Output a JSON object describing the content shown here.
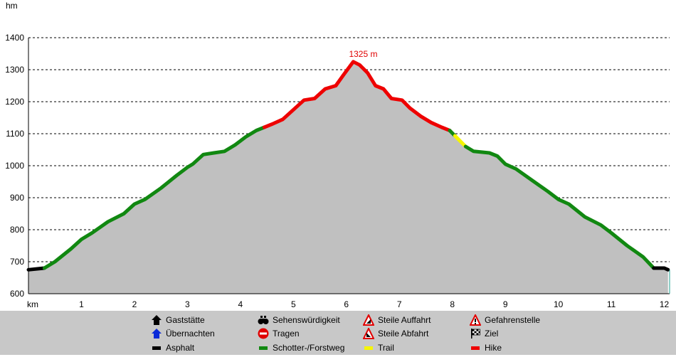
{
  "chart_data": {
    "type": "area",
    "ylabel": "hm",
    "xlabel": "km",
    "ylim": [
      600,
      1400
    ],
    "xlim": [
      0,
      12.1
    ],
    "y_ticks": [
      "600",
      "700",
      "800",
      "900",
      "1000",
      "1100",
      "1200",
      "1300",
      "1400"
    ],
    "x_ticks": [
      "1",
      "2",
      "3",
      "4",
      "5",
      "6",
      "7",
      "8",
      "9",
      "10",
      "11",
      "12"
    ],
    "grid": "horizontal dashed",
    "annotation": "1325 m",
    "peak": {
      "x": 6.13,
      "y": 1325
    },
    "profile": [
      [
        0.0,
        675
      ],
      [
        0.3,
        680
      ],
      [
        0.5,
        700
      ],
      [
        0.8,
        740
      ],
      [
        1.0,
        770
      ],
      [
        1.2,
        790
      ],
      [
        1.5,
        825
      ],
      [
        1.8,
        850
      ],
      [
        2.0,
        880
      ],
      [
        2.2,
        895
      ],
      [
        2.5,
        930
      ],
      [
        2.8,
        970
      ],
      [
        3.0,
        995
      ],
      [
        3.1,
        1005
      ],
      [
        3.3,
        1035
      ],
      [
        3.5,
        1040
      ],
      [
        3.7,
        1045
      ],
      [
        3.9,
        1065
      ],
      [
        4.1,
        1090
      ],
      [
        4.3,
        1110
      ],
      [
        4.45,
        1120
      ],
      [
        4.6,
        1130
      ],
      [
        4.8,
        1145
      ],
      [
        5.0,
        1175
      ],
      [
        5.2,
        1205
      ],
      [
        5.4,
        1210
      ],
      [
        5.6,
        1240
      ],
      [
        5.8,
        1250
      ],
      [
        5.95,
        1285
      ],
      [
        6.13,
        1325
      ],
      [
        6.25,
        1315
      ],
      [
        6.4,
        1290
      ],
      [
        6.55,
        1250
      ],
      [
        6.7,
        1240
      ],
      [
        6.85,
        1210
      ],
      [
        7.05,
        1205
      ],
      [
        7.2,
        1180
      ],
      [
        7.4,
        1155
      ],
      [
        7.6,
        1135
      ],
      [
        7.8,
        1120
      ],
      [
        7.95,
        1110
      ],
      [
        8.1,
        1085
      ],
      [
        8.25,
        1060
      ],
      [
        8.4,
        1045
      ],
      [
        8.7,
        1040
      ],
      [
        8.85,
        1030
      ],
      [
        9.0,
        1005
      ],
      [
        9.2,
        990
      ],
      [
        9.5,
        955
      ],
      [
        9.8,
        920
      ],
      [
        10.0,
        895
      ],
      [
        10.2,
        880
      ],
      [
        10.5,
        840
      ],
      [
        10.8,
        815
      ],
      [
        11.0,
        790
      ],
      [
        11.3,
        750
      ],
      [
        11.6,
        715
      ],
      [
        11.8,
        680
      ],
      [
        12.0,
        680
      ],
      [
        12.07,
        675
      ]
    ],
    "segments": [
      {
        "surface": "asphalt",
        "from": 0.0,
        "to": 0.3
      },
      {
        "surface": "gravel",
        "from": 0.3,
        "to": 4.45
      },
      {
        "surface": "hike",
        "from": 4.45,
        "to": 7.95
      },
      {
        "surface": "gravel",
        "from": 7.95,
        "to": 8.05
      },
      {
        "surface": "trail",
        "from": 8.05,
        "to": 8.25
      },
      {
        "surface": "gravel",
        "from": 8.25,
        "to": 11.8
      },
      {
        "surface": "asphalt",
        "from": 11.8,
        "to": 12.07
      }
    ],
    "colors": {
      "asphalt": "#000000",
      "gravel": "#118811",
      "trail": "#f5f500",
      "hike": "#ee0000",
      "fill": "#c0c0c0",
      "annotation": "#e00000"
    }
  },
  "legend": {
    "items": [
      {
        "label": "Gaststätte",
        "icon": "house-black-icon"
      },
      {
        "label": "Sehenswürdigkeit",
        "icon": "binoculars-icon"
      },
      {
        "label": "Steile Auffahrt",
        "icon": "steep-ascent-icon"
      },
      {
        "label": "Gefahrenstelle",
        "icon": "danger-sign-icon"
      },
      {
        "label": "Übernachten",
        "icon": "house-blue-icon"
      },
      {
        "label": "Tragen",
        "icon": "stop-icon"
      },
      {
        "label": "Steile Abfahrt",
        "icon": "steep-descent-icon"
      },
      {
        "label": "Ziel",
        "icon": "checkered-flag-icon"
      },
      {
        "label": "Asphalt",
        "icon": "asphalt-swatch-icon"
      },
      {
        "label": "Schotter-/Forstweg",
        "icon": "gravel-swatch-icon"
      },
      {
        "label": "Trail",
        "icon": "trail-swatch-icon"
      },
      {
        "label": "Hike",
        "icon": "hike-swatch-icon"
      }
    ]
  }
}
